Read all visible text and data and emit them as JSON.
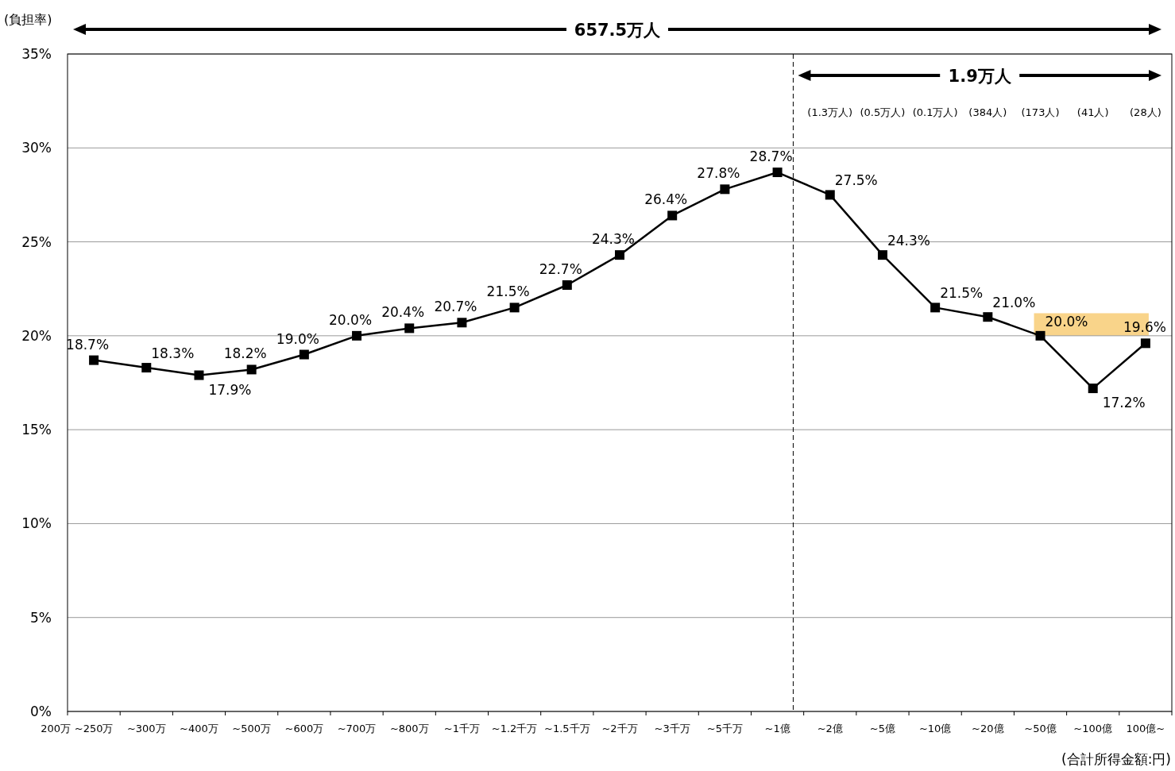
{
  "chart_data": {
    "type": "line",
    "ylabel": "(負担率)",
    "categories": [
      "~250万",
      "~300万",
      "~400万",
      "~500万",
      "~600万",
      "~700万",
      "~800万",
      "~1千万",
      "~1.2千万",
      "~1.5千万",
      "~2千万",
      "~3千万",
      "~5千万",
      "~1億",
      "~2億",
      "~5億",
      "~10億",
      "~20億",
      "~50億",
      "~100億",
      "100億~"
    ],
    "series": [
      {
        "color": "#000000",
        "values": [
          18.7,
          18.3,
          17.9,
          18.2,
          19.0,
          20.0,
          20.4,
          20.7,
          21.5,
          22.7,
          24.3,
          26.4,
          27.8,
          28.7,
          27.5,
          24.3,
          21.5,
          21.0,
          20.0,
          17.2,
          19.6
        ],
        "value_labels": [
          "18.7%",
          "18.3%",
          "17.9%",
          "18.2%",
          "19.0%",
          "20.0%",
          "20.4%",
          "20.7%",
          "21.5%",
          "22.7%",
          "24.3%",
          "26.4%",
          "27.8%",
          "28.7%",
          "27.5%",
          "24.3%",
          "21.5%",
          "21.0%",
          "20.0%",
          "17.2%",
          "19.6%"
        ]
      }
    ],
    "ylim": [
      0,
      35
    ],
    "yticks": [
      {
        "value": 0,
        "label": "0%"
      },
      {
        "value": 5,
        "label": "5%"
      },
      {
        "value": 10,
        "label": "10%"
      },
      {
        "value": 15,
        "label": "15%"
      },
      {
        "value": 20,
        "label": "20%"
      },
      {
        "value": 25,
        "label": "25%"
      },
      {
        "value": 30,
        "label": "30%"
      },
      {
        "value": 35,
        "label": "35%"
      }
    ],
    "grid": "y",
    "marker": "square",
    "line_style": "solid",
    "bands": [
      {
        "axis": "y",
        "from": 20,
        "to": 21.2,
        "color": "#f9d48a"
      }
    ],
    "annotations": [
      "657.5万人",
      "1.9万人",
      "(1.3万人)",
      "(0.5万人)",
      "(0.1万人)",
      "(384人)",
      "(173人)",
      "(41人)",
      "(28人)",
      "(合計所得金額:円)",
      "200万"
    ]
  }
}
